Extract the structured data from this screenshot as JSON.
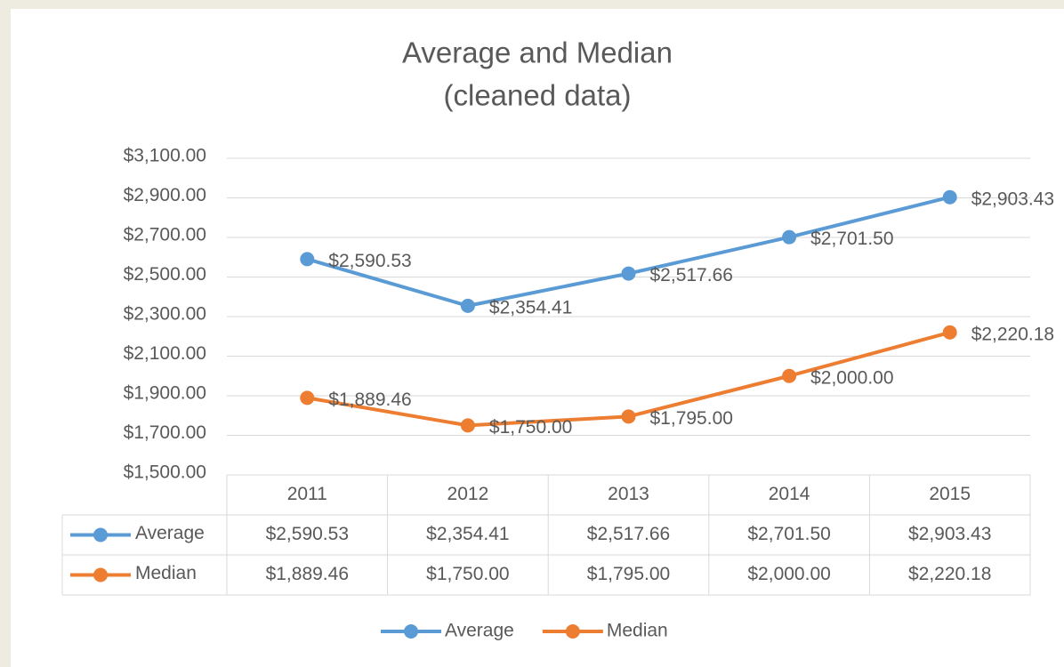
{
  "chart_data": {
    "type": "line",
    "title": [
      "Average and Median",
      "(cleaned data)"
    ],
    "categories": [
      "2011",
      "2012",
      "2013",
      "2014",
      "2015"
    ],
    "series": [
      {
        "name": "Average",
        "color": "#5b9bd5",
        "values": [
          2590.53,
          2354.41,
          2517.66,
          2701.5,
          2903.43
        ],
        "value_labels": [
          "$2,590.53",
          "$2,354.41",
          "$2,517.66",
          "$2,701.50",
          "$2,903.43"
        ]
      },
      {
        "name": "Median",
        "color": "#ed7d31",
        "values": [
          1889.46,
          1750.0,
          1795.0,
          2000.0,
          2220.18
        ],
        "value_labels": [
          "$1,889.46",
          "$1,750.00",
          "$1,795.00",
          "$2,000.00",
          "$2,220.18"
        ]
      }
    ],
    "ylim": [
      1500,
      3100
    ],
    "yticks": [
      {
        "value": 1500,
        "label": "$1,500.00"
      },
      {
        "value": 1700,
        "label": "$1,700.00"
      },
      {
        "value": 1900,
        "label": "$1,900.00"
      },
      {
        "value": 2100,
        "label": "$2,100.00"
      },
      {
        "value": 2300,
        "label": "$2,300.00"
      },
      {
        "value": 2500,
        "label": "$2,500.00"
      },
      {
        "value": 2700,
        "label": "$2,700.00"
      },
      {
        "value": 2900,
        "label": "$2,900.00"
      },
      {
        "value": 3100,
        "label": "$3,100.00"
      }
    ],
    "grid": true,
    "data_table": true,
    "legend": "bottom"
  }
}
